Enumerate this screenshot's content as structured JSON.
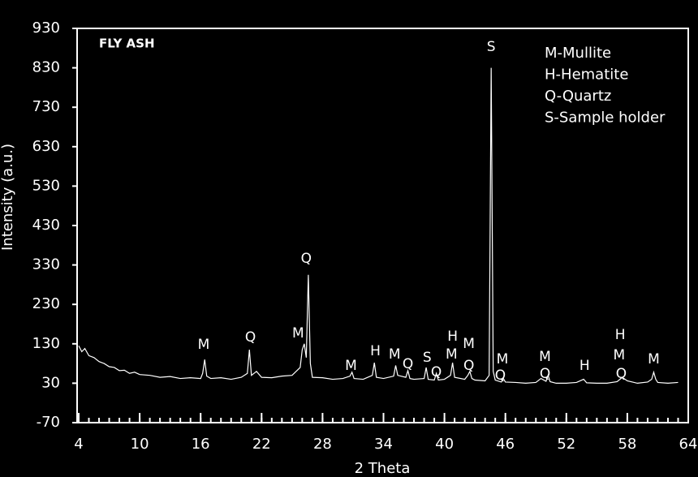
{
  "chart_data": {
    "type": "line",
    "title": "FLY ASH",
    "xlabel": "2 Theta",
    "ylabel": "Intensity (a.u.)",
    "legend_text": [
      "M-Mullite",
      "H-Hematite",
      "Q-Quartz",
      "S-Sample holder"
    ],
    "xlim": [
      4,
      64
    ],
    "xticks": [
      4,
      10,
      16,
      22,
      28,
      34,
      40,
      46,
      52,
      58,
      64
    ],
    "ylim": [
      -70,
      930
    ],
    "yticks": [
      -70,
      30,
      130,
      230,
      330,
      430,
      530,
      630,
      730,
      830,
      930
    ],
    "color": "#ffffff",
    "x": [
      4,
      4.3,
      4.6,
      5,
      5.5,
      6,
      6.5,
      7,
      7.5,
      8,
      8.5,
      9,
      9.5,
      10,
      11,
      12,
      13,
      14,
      15,
      16,
      16.2,
      16.4,
      16.6,
      17,
      18,
      19,
      20,
      20.6,
      20.8,
      21,
      21.5,
      22,
      23,
      24,
      25,
      25.8,
      26.0,
      26.2,
      26.4,
      26.6,
      26.8,
      27,
      28,
      29,
      30,
      30.7,
      30.9,
      31.1,
      32,
      32.9,
      33.1,
      33.3,
      34,
      35,
      35.2,
      35.4,
      36.2,
      36.4,
      36.6,
      37,
      38,
      38.2,
      38.4,
      39,
      39.2,
      39.4,
      40,
      40.6,
      40.8,
      41,
      42,
      42.3,
      42.5,
      42.7,
      43,
      44,
      44.4,
      44.6,
      44.8,
      45,
      45.6,
      45.8,
      46,
      47,
      48,
      49,
      49.5,
      50,
      50.2,
      50.4,
      51,
      52,
      53,
      53.7,
      54,
      55,
      56,
      57,
      57.5,
      58,
      59,
      60,
      60.4,
      60.6,
      60.8,
      61,
      62,
      63
    ],
    "values": [
      125,
      110,
      118,
      100,
      95,
      85,
      80,
      72,
      70,
      62,
      63,
      55,
      58,
      52,
      50,
      45,
      47,
      42,
      44,
      42,
      55,
      90,
      48,
      42,
      44,
      40,
      45,
      55,
      115,
      50,
      60,
      45,
      44,
      48,
      50,
      70,
      115,
      130,
      95,
      305,
      80,
      45,
      44,
      40,
      42,
      48,
      58,
      42,
      40,
      50,
      82,
      45,
      42,
      48,
      75,
      50,
      45,
      62,
      42,
      40,
      42,
      70,
      40,
      38,
      55,
      38,
      40,
      50,
      82,
      45,
      40,
      50,
      60,
      42,
      38,
      36,
      50,
      830,
      60,
      38,
      33,
      42,
      33,
      32,
      30,
      32,
      42,
      35,
      50,
      34,
      30,
      30,
      32,
      40,
      31,
      30,
      30,
      34,
      45,
      36,
      30,
      33,
      40,
      58,
      40,
      32,
      30,
      32
    ],
    "annotations": [
      {
        "text": "M",
        "x": 16.3,
        "y": 128
      },
      {
        "text": "Q",
        "x": 20.9,
        "y": 146
      },
      {
        "text": "M",
        "x": 25.6,
        "y": 156
      },
      {
        "text": "Q",
        "x": 26.4,
        "y": 346
      },
      {
        "text": "M",
        "x": 30.8,
        "y": 74
      },
      {
        "text": "H",
        "x": 33.2,
        "y": 111
      },
      {
        "text": "M",
        "x": 35.1,
        "y": 103
      },
      {
        "text": "Q",
        "x": 36.4,
        "y": 78
      },
      {
        "text": "S",
        "x": 38.3,
        "y": 95
      },
      {
        "text": "Q",
        "x": 39.2,
        "y": 58
      },
      {
        "text": "M",
        "x": 40.7,
        "y": 103
      },
      {
        "text": "H",
        "x": 40.8,
        "y": 148
      },
      {
        "text": "M",
        "x": 42.4,
        "y": 130
      },
      {
        "text": "Q",
        "x": 42.4,
        "y": 74
      },
      {
        "text": "S",
        "x": 44.6,
        "y": 883
      },
      {
        "text": "M",
        "x": 45.7,
        "y": 90
      },
      {
        "text": "Q",
        "x": 45.5,
        "y": 49
      },
      {
        "text": "M",
        "x": 49.9,
        "y": 97
      },
      {
        "text": "Q",
        "x": 49.9,
        "y": 53
      },
      {
        "text": "H",
        "x": 53.8,
        "y": 74
      },
      {
        "text": "H",
        "x": 57.3,
        "y": 152
      },
      {
        "text": "M",
        "x": 57.2,
        "y": 101
      },
      {
        "text": "Q",
        "x": 57.4,
        "y": 53
      },
      {
        "text": "M",
        "x": 60.6,
        "y": 90
      }
    ]
  }
}
